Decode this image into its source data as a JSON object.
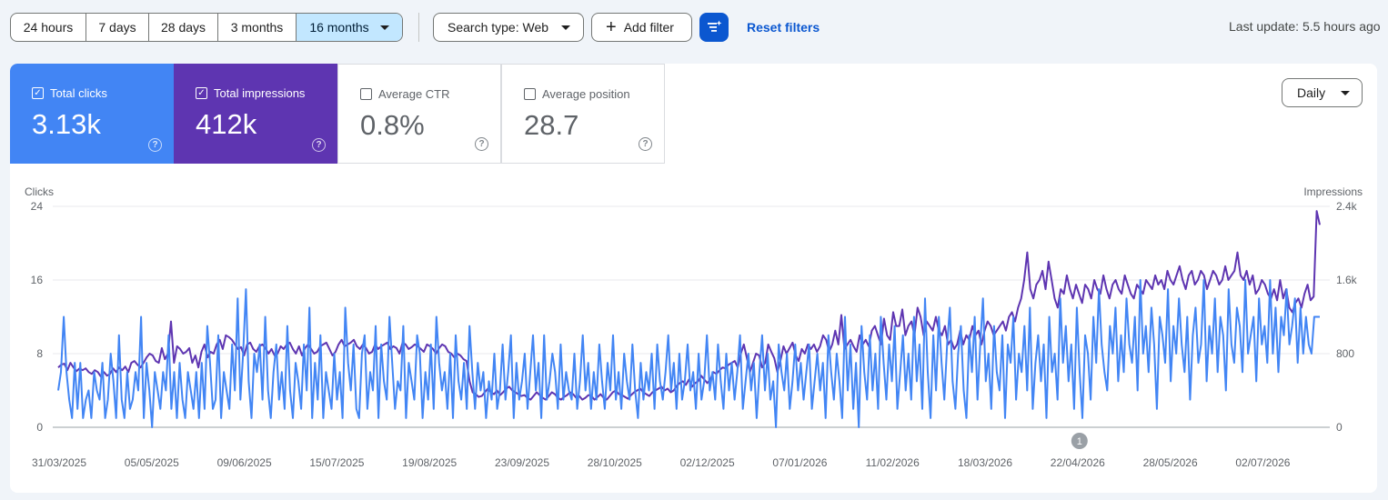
{
  "toolbar": {
    "ranges": [
      "24 hours",
      "7 days",
      "28 days",
      "3 months",
      "16 months"
    ],
    "active_range": "16 months",
    "search_type": "Search type: Web",
    "add_filter": "Add filter",
    "reset_filters": "Reset filters",
    "last_update": "Last update: 5.5 hours ago"
  },
  "metrics": [
    {
      "label": "Total clicks",
      "value": "3.13k",
      "checked": true,
      "color": "#4285f4"
    },
    {
      "label": "Total impressions",
      "value": "412k",
      "checked": true,
      "color": "#5e35b1"
    },
    {
      "label": "Average CTR",
      "value": "0.8%",
      "checked": false
    },
    {
      "label": "Average position",
      "value": "28.7",
      "checked": false
    }
  ],
  "granularity": "Daily",
  "chart_data": {
    "type": "line",
    "left_axis_label": "Clicks",
    "right_axis_label": "Impressions",
    "left_ticks": [
      "0",
      "8",
      "16",
      "24"
    ],
    "right_ticks": [
      "0",
      "800",
      "1.6k",
      "2.4k"
    ],
    "ylim_left": [
      0,
      24
    ],
    "ylim_right": [
      0,
      2400
    ],
    "x_ticks": [
      "31/03/2025",
      "05/05/2025",
      "09/06/2025",
      "15/07/2025",
      "19/08/2025",
      "23/09/2025",
      "28/10/2025",
      "02/12/2025",
      "07/01/2026",
      "11/02/2026",
      "18/03/2026",
      "22/04/2026",
      "28/05/2026",
      "02/07/2026"
    ],
    "annotation": {
      "label": "1",
      "date": "22/04/2026"
    },
    "series": [
      {
        "name": "Clicks",
        "color": "#4285f4",
        "axis": "left",
        "values": [
          4,
          6,
          12,
          6,
          3,
          1,
          7,
          2,
          7,
          1,
          3,
          4,
          1,
          6,
          4,
          3,
          7,
          1,
          3,
          8,
          5,
          1,
          10,
          3,
          1,
          6,
          2,
          3,
          6,
          4,
          12,
          1,
          7,
          4,
          0,
          6,
          4,
          2,
          6,
          4,
          10,
          2,
          6,
          1,
          7,
          3,
          1,
          6,
          4,
          2,
          6,
          1,
          7,
          2,
          11,
          7,
          2,
          3,
          10,
          1,
          6,
          4,
          2,
          9,
          4,
          14,
          3,
          8,
          15,
          5,
          1,
          8,
          6,
          9,
          3,
          12,
          4,
          1,
          6,
          9,
          3,
          6,
          2,
          11,
          4,
          1,
          7,
          5,
          2,
          9,
          4,
          13,
          1,
          7,
          3,
          10,
          1,
          6,
          4,
          2,
          8,
          3,
          6,
          1,
          13,
          7,
          4,
          9,
          2,
          1,
          8,
          10,
          2,
          6,
          4,
          11,
          1,
          9,
          5,
          3,
          12,
          7,
          2,
          5,
          4,
          11,
          1,
          7,
          5,
          3,
          10,
          8,
          1,
          6,
          3,
          9,
          2,
          12,
          7,
          4,
          6,
          2,
          8,
          1,
          10,
          5,
          3,
          7,
          2,
          11,
          6,
          2,
          7,
          4,
          6,
          1,
          5,
          3,
          8,
          2,
          4,
          9,
          3,
          6,
          10,
          1,
          7,
          3,
          5,
          8,
          2,
          6,
          10,
          4,
          7,
          1,
          10,
          3,
          5,
          8,
          6,
          2,
          9,
          3,
          6,
          4,
          3,
          8,
          2,
          5,
          10,
          4,
          7,
          2,
          6,
          3,
          9,
          5,
          2,
          7,
          4,
          10,
          3,
          6,
          2,
          8,
          5,
          3,
          9,
          4,
          1,
          7,
          3,
          6,
          4,
          8,
          2,
          9,
          5,
          3,
          6,
          10,
          4,
          7,
          2,
          8,
          3,
          5,
          9,
          4,
          6,
          2,
          8,
          3,
          5,
          10,
          4,
          6,
          3,
          9,
          5,
          2,
          8,
          4,
          7,
          3,
          6,
          10,
          2,
          5,
          8,
          4,
          7,
          1,
          6,
          10,
          4,
          8,
          3,
          5,
          0,
          9,
          6,
          4,
          8,
          2,
          5,
          9,
          4,
          7,
          3,
          6,
          9,
          2,
          5,
          8,
          4,
          7,
          1,
          10,
          6,
          3,
          8,
          5,
          1,
          12,
          4,
          9,
          2,
          7,
          0,
          11,
          6,
          3,
          10,
          4,
          8,
          2,
          12,
          7,
          3,
          9,
          5,
          11,
          2,
          6,
          10,
          4,
          8,
          3,
          12,
          5,
          9,
          2,
          14,
          6,
          1,
          10,
          4,
          12,
          7,
          3,
          9,
          13,
          5,
          2,
          8,
          11,
          4,
          1,
          10,
          6,
          12,
          3,
          9,
          14,
          5,
          8,
          2,
          11,
          6,
          4,
          10,
          1,
          9,
          7,
          12,
          3,
          8,
          6,
          11,
          4,
          13,
          2,
          7,
          10,
          5,
          9,
          1,
          12,
          6,
          8,
          3,
          14,
          7,
          11,
          5,
          9,
          2,
          13,
          6,
          1,
          10,
          8,
          3,
          12,
          7,
          15,
          9,
          6,
          4,
          11,
          8,
          13,
          5,
          10,
          6,
          14,
          9,
          7,
          12,
          4,
          16,
          8,
          11,
          6,
          13,
          9,
          2,
          12,
          10,
          7,
          15,
          5,
          11,
          8,
          14,
          9,
          6,
          12,
          3,
          10,
          13,
          7,
          9,
          16,
          5,
          11,
          8,
          14,
          6,
          12,
          10,
          4,
          15,
          9,
          7,
          13,
          11,
          6,
          16,
          8,
          10,
          12,
          5,
          14,
          9,
          11,
          7,
          16,
          8,
          13,
          6,
          12,
          10,
          15,
          9,
          11,
          14,
          7,
          13,
          8,
          12,
          9,
          8,
          12,
          12,
          12
        ]
      },
      {
        "name": "Impressions",
        "color": "#5e35b1",
        "axis": "right",
        "values": [
          650,
          680,
          690,
          620,
          700,
          650,
          610,
          640,
          620,
          640,
          600,
          580,
          620,
          600,
          550,
          600,
          560,
          580,
          640,
          600,
          650,
          620,
          660,
          600,
          700,
          720,
          680,
          650,
          700,
          760,
          800,
          780,
          720,
          700,
          860,
          740,
          800,
          1150,
          700,
          880,
          850,
          800,
          820,
          860,
          700,
          780,
          650,
          820,
          900,
          760,
          820,
          800,
          900,
          950,
          850,
          1000,
          980,
          950,
          900,
          850,
          870,
          780,
          900,
          920,
          850,
          820,
          880,
          900,
          860,
          800,
          850,
          780,
          800,
          880,
          850,
          900,
          920,
          850,
          800,
          880,
          780,
          860,
          900,
          850,
          800,
          820,
          880,
          900,
          920,
          850,
          780,
          820,
          900,
          950,
          880,
          900,
          920,
          950,
          880,
          850,
          900,
          860,
          800,
          820,
          900,
          850,
          880,
          900,
          920,
          850,
          880,
          860,
          800,
          920,
          900,
          850,
          870,
          900,
          880,
          850,
          820,
          900,
          880,
          850,
          800,
          860,
          900,
          880,
          820,
          800,
          760,
          800,
          780,
          740,
          720,
          500,
          380,
          360,
          330,
          340,
          380,
          420,
          380,
          360,
          400,
          350,
          380,
          420,
          440,
          400,
          380,
          360,
          340,
          350,
          320,
          300,
          340,
          380,
          350,
          320,
          300,
          340,
          380,
          360,
          320,
          300,
          330,
          350,
          380,
          360,
          320,
          340,
          300,
          320,
          350,
          340,
          300,
          330,
          360,
          320,
          300,
          340,
          380,
          400,
          360,
          350,
          330,
          310,
          350,
          380,
          400,
          420,
          380,
          360,
          340,
          380,
          400,
          420,
          440,
          400,
          420,
          380,
          400,
          450,
          480,
          500,
          460,
          520,
          440,
          480,
          500,
          560,
          520,
          480,
          520,
          600,
          580,
          620,
          650,
          640,
          680,
          700,
          720,
          650,
          800,
          900,
          750,
          600,
          700,
          800,
          780,
          650,
          700,
          900,
          820,
          750,
          600,
          720,
          880,
          800,
          860,
          920,
          780,
          720,
          850,
          800,
          900,
          850,
          900,
          820,
          880,
          1000,
          950,
          820,
          900,
          1050,
          900,
          1220,
          850,
          900,
          950,
          880,
          820,
          1000,
          900,
          950,
          880,
          1050,
          1100,
          1000,
          900,
          1180,
          1000,
          950,
          1250,
          1100,
          1100,
          1280,
          1000,
          1100,
          1150,
          1000,
          1300,
          1200,
          1000,
          1150,
          1100,
          1050,
          1200,
          1050,
          1000,
          1100,
          900,
          950,
          850,
          900,
          1050,
          900,
          1000,
          950,
          1100,
          1000,
          1050,
          900,
          1050,
          1150,
          1100,
          1000,
          1050,
          1100,
          1150,
          1050,
          1200,
          1250,
          1150,
          1300,
          1400,
          1600,
          1900,
          1500,
          1400,
          1550,
          1600,
          1700,
          1500,
          1800,
          1600,
          1400,
          1300,
          1500,
          1450,
          1650,
          1500,
          1400,
          1550,
          1450,
          1350,
          1550,
          1500,
          1400,
          1600,
          1500,
          1450,
          1650,
          1500,
          1400,
          1550,
          1600,
          1500,
          1450,
          1650,
          1550,
          1450,
          1400,
          1550,
          1500,
          1450,
          1600,
          1550,
          1500,
          1650,
          1550,
          1600,
          1500,
          1700,
          1600,
          1550,
          1650,
          1750,
          1600,
          1500,
          1650,
          1700,
          1550,
          1600,
          1700,
          1650,
          1500,
          1600,
          1700,
          1650,
          1550,
          1600,
          1750,
          1600,
          1650,
          1700,
          1900,
          1650,
          1600,
          1700,
          1550,
          1650,
          1450,
          1500,
          1600,
          1550,
          1450,
          1400,
          1500,
          1380,
          1600,
          1400,
          1500,
          1300,
          1250,
          1350,
          1400,
          1300,
          1450,
          1550,
          1380,
          1420,
          2350,
          2200
        ]
      }
    ]
  }
}
